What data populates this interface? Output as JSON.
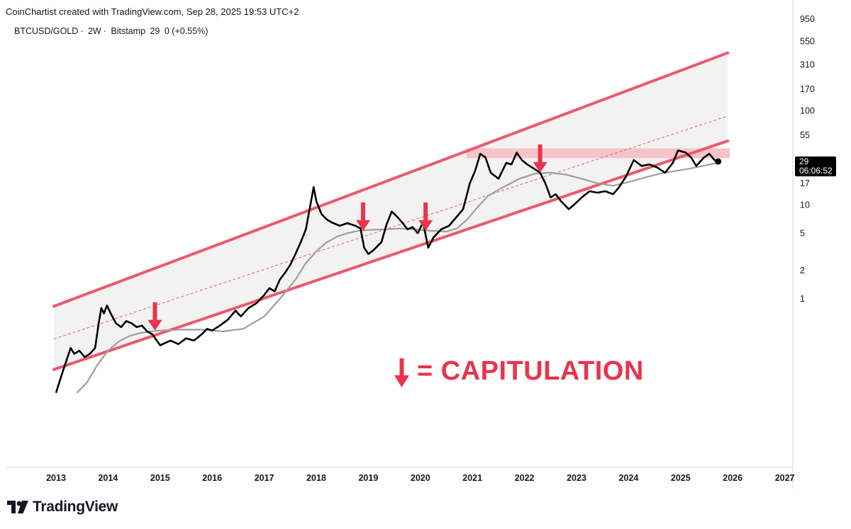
{
  "header": {
    "credit": "CoinChartist created with TradingView.com, Sep 28, 2025 19:53 UTC+2"
  },
  "symbol": {
    "name": "BTCUSD/GOLD",
    "interval": "2W",
    "exchange": "Bitstamp",
    "last": "29",
    "change": "0 (+0.55%)"
  },
  "price_tag": {
    "value": "29",
    "countdown": "06:06:52"
  },
  "legend": {
    "text": "= CAPITULATION",
    "color": "#e8344c"
  },
  "logo": {
    "text": "TradingView",
    "icon": "tradingview-logo-icon"
  },
  "colors": {
    "channel": "#ea5a6a",
    "channel_fill": "#f2f2f2",
    "price": "#000000",
    "moving_average": "#9e9e9e",
    "marker": "#e8344c",
    "resistance_band": "#f6c3c8"
  },
  "chart_data": {
    "type": "line",
    "title": "BTCUSD/GOLD · 2W · Bitstamp",
    "y_scale": "log",
    "y_ticks": [
      950,
      550,
      310,
      170,
      100,
      55,
      29,
      17,
      10,
      5,
      2,
      1
    ],
    "x_ticks": [
      "2013",
      "2014",
      "2015",
      "2016",
      "2017",
      "2018",
      "2019",
      "2020",
      "2021",
      "2022",
      "2023",
      "2024",
      "2025",
      "2026",
      "2027"
    ],
    "x_range": [
      2013,
      2027
    ],
    "y_range": [
      0.1,
      1000
    ],
    "series": [
      {
        "points": [
          [
            2013.0,
            0.1
          ],
          [
            2013.1,
            0.15
          ],
          [
            2013.2,
            0.22
          ],
          [
            2013.28,
            0.3
          ],
          [
            2013.35,
            0.26
          ],
          [
            2013.45,
            0.28
          ],
          [
            2013.55,
            0.24
          ],
          [
            2013.65,
            0.26
          ],
          [
            2013.75,
            0.3
          ],
          [
            2013.82,
            0.55
          ],
          [
            2013.87,
            0.8
          ],
          [
            2013.92,
            0.7
          ],
          [
            2013.98,
            0.85
          ],
          [
            2014.05,
            0.7
          ],
          [
            2014.15,
            0.55
          ],
          [
            2014.25,
            0.5
          ],
          [
            2014.35,
            0.58
          ],
          [
            2014.45,
            0.55
          ],
          [
            2014.55,
            0.5
          ],
          [
            2014.65,
            0.52
          ],
          [
            2014.75,
            0.45
          ],
          [
            2014.85,
            0.42
          ],
          [
            2015.0,
            0.32
          ],
          [
            2015.1,
            0.34
          ],
          [
            2015.2,
            0.36
          ],
          [
            2015.35,
            0.33
          ],
          [
            2015.5,
            0.38
          ],
          [
            2015.65,
            0.36
          ],
          [
            2015.8,
            0.42
          ],
          [
            2015.9,
            0.48
          ],
          [
            2016.0,
            0.46
          ],
          [
            2016.15,
            0.52
          ],
          [
            2016.3,
            0.6
          ],
          [
            2016.45,
            0.75
          ],
          [
            2016.55,
            0.65
          ],
          [
            2016.7,
            0.8
          ],
          [
            2016.85,
            0.9
          ],
          [
            2017.0,
            1.1
          ],
          [
            2017.1,
            1.3
          ],
          [
            2017.2,
            1.2
          ],
          [
            2017.3,
            1.6
          ],
          [
            2017.4,
            1.9
          ],
          [
            2017.5,
            2.3
          ],
          [
            2017.6,
            3.0
          ],
          [
            2017.7,
            4.0
          ],
          [
            2017.8,
            5.5
          ],
          [
            2017.9,
            11.0
          ],
          [
            2017.95,
            15.5
          ],
          [
            2018.0,
            11.0
          ],
          [
            2018.1,
            8.0
          ],
          [
            2018.2,
            7.0
          ],
          [
            2018.3,
            6.5
          ],
          [
            2018.45,
            6.0
          ],
          [
            2018.6,
            6.4
          ],
          [
            2018.75,
            6.0
          ],
          [
            2018.85,
            5.6
          ],
          [
            2018.92,
            3.5
          ],
          [
            2019.0,
            3.0
          ],
          [
            2019.1,
            3.3
          ],
          [
            2019.25,
            4.0
          ],
          [
            2019.35,
            6.2
          ],
          [
            2019.45,
            8.5
          ],
          [
            2019.55,
            7.5
          ],
          [
            2019.65,
            6.5
          ],
          [
            2019.75,
            5.5
          ],
          [
            2019.85,
            5.8
          ],
          [
            2019.95,
            5.0
          ],
          [
            2020.05,
            6.5
          ],
          [
            2020.15,
            3.5
          ],
          [
            2020.25,
            4.5
          ],
          [
            2020.4,
            5.5
          ],
          [
            2020.55,
            6.0
          ],
          [
            2020.7,
            7.5
          ],
          [
            2020.82,
            9.0
          ],
          [
            2020.95,
            17.0
          ],
          [
            2021.05,
            23.0
          ],
          [
            2021.15,
            35.0
          ],
          [
            2021.25,
            32.0
          ],
          [
            2021.35,
            22.0
          ],
          [
            2021.5,
            19.0
          ],
          [
            2021.65,
            28.0
          ],
          [
            2021.75,
            27.0
          ],
          [
            2021.85,
            36.0
          ],
          [
            2021.95,
            30.0
          ],
          [
            2022.05,
            27.0
          ],
          [
            2022.15,
            25.0
          ],
          [
            2022.3,
            22.0
          ],
          [
            2022.4,
            17.0
          ],
          [
            2022.5,
            12.0
          ],
          [
            2022.6,
            13.0
          ],
          [
            2022.7,
            11.0
          ],
          [
            2022.85,
            9.0
          ],
          [
            2022.95,
            10.0
          ],
          [
            2023.1,
            12.0
          ],
          [
            2023.25,
            14.0
          ],
          [
            2023.4,
            13.5
          ],
          [
            2023.55,
            14.0
          ],
          [
            2023.7,
            13.0
          ],
          [
            2023.8,
            15.0
          ],
          [
            2023.95,
            20.0
          ],
          [
            2024.1,
            30.0
          ],
          [
            2024.25,
            26.0
          ],
          [
            2024.4,
            27.0
          ],
          [
            2024.55,
            25.0
          ],
          [
            2024.7,
            22.0
          ],
          [
            2024.85,
            28.0
          ],
          [
            2024.95,
            38.0
          ],
          [
            2025.1,
            36.0
          ],
          [
            2025.2,
            32.0
          ],
          [
            2025.3,
            26.0
          ],
          [
            2025.45,
            32.0
          ],
          [
            2025.55,
            35.0
          ],
          [
            2025.65,
            30.0
          ],
          [
            2025.72,
            29.0
          ]
        ]
      },
      {
        "points": [
          [
            2013.4,
            0.1
          ],
          [
            2013.6,
            0.13
          ],
          [
            2013.8,
            0.2
          ],
          [
            2014.0,
            0.28
          ],
          [
            2014.2,
            0.35
          ],
          [
            2014.4,
            0.4
          ],
          [
            2014.6,
            0.43
          ],
          [
            2014.8,
            0.45
          ],
          [
            2015.0,
            0.46
          ],
          [
            2015.4,
            0.47
          ],
          [
            2015.8,
            0.47
          ],
          [
            2016.2,
            0.45
          ],
          [
            2016.6,
            0.48
          ],
          [
            2017.0,
            0.65
          ],
          [
            2017.3,
            1.0
          ],
          [
            2017.6,
            1.6
          ],
          [
            2017.8,
            2.4
          ],
          [
            2018.0,
            3.2
          ],
          [
            2018.2,
            4.0
          ],
          [
            2018.4,
            4.6
          ],
          [
            2018.6,
            5.0
          ],
          [
            2018.8,
            5.3
          ],
          [
            2019.0,
            5.4
          ],
          [
            2019.3,
            5.5
          ],
          [
            2019.6,
            5.6
          ],
          [
            2019.9,
            5.5
          ],
          [
            2020.2,
            5.3
          ],
          [
            2020.5,
            5.2
          ],
          [
            2020.7,
            5.6
          ],
          [
            2020.9,
            7.0
          ],
          [
            2021.1,
            9.5
          ],
          [
            2021.3,
            12.5
          ],
          [
            2021.6,
            15.5
          ],
          [
            2021.9,
            19.0
          ],
          [
            2022.2,
            21.5
          ],
          [
            2022.5,
            22.0
          ],
          [
            2022.8,
            21.0
          ],
          [
            2023.1,
            19.0
          ],
          [
            2023.4,
            17.0
          ],
          [
            2023.7,
            16.0
          ],
          [
            2024.0,
            17.5
          ],
          [
            2024.3,
            19.5
          ],
          [
            2024.6,
            21.5
          ],
          [
            2024.9,
            23.0
          ],
          [
            2025.2,
            24.5
          ],
          [
            2025.5,
            26.5
          ],
          [
            2025.72,
            28.0
          ]
        ]
      }
    ],
    "channel": {
      "upper": [
        [
          2013.0,
          0.85
        ],
        [
          2026.0,
          435
        ]
      ],
      "lower": [
        [
          2013.0,
          0.18
        ],
        [
          2026.0,
          50
        ]
      ],
      "mid": [
        [
          2013.0,
          0.38
        ],
        [
          2026.0,
          92
        ]
      ]
    },
    "resistance_band": {
      "x": [
        2020.95,
        2026.0
      ],
      "y": [
        31.5,
        40
      ]
    },
    "capitulation_markers": [
      {
        "x": 2014.9,
        "y": 0.46
      },
      {
        "x": 2018.9,
        "y": 5.3
      },
      {
        "x": 2020.1,
        "y": 5.3
      },
      {
        "x": 2022.3,
        "y": 22
      }
    ],
    "last_value": 29
  }
}
